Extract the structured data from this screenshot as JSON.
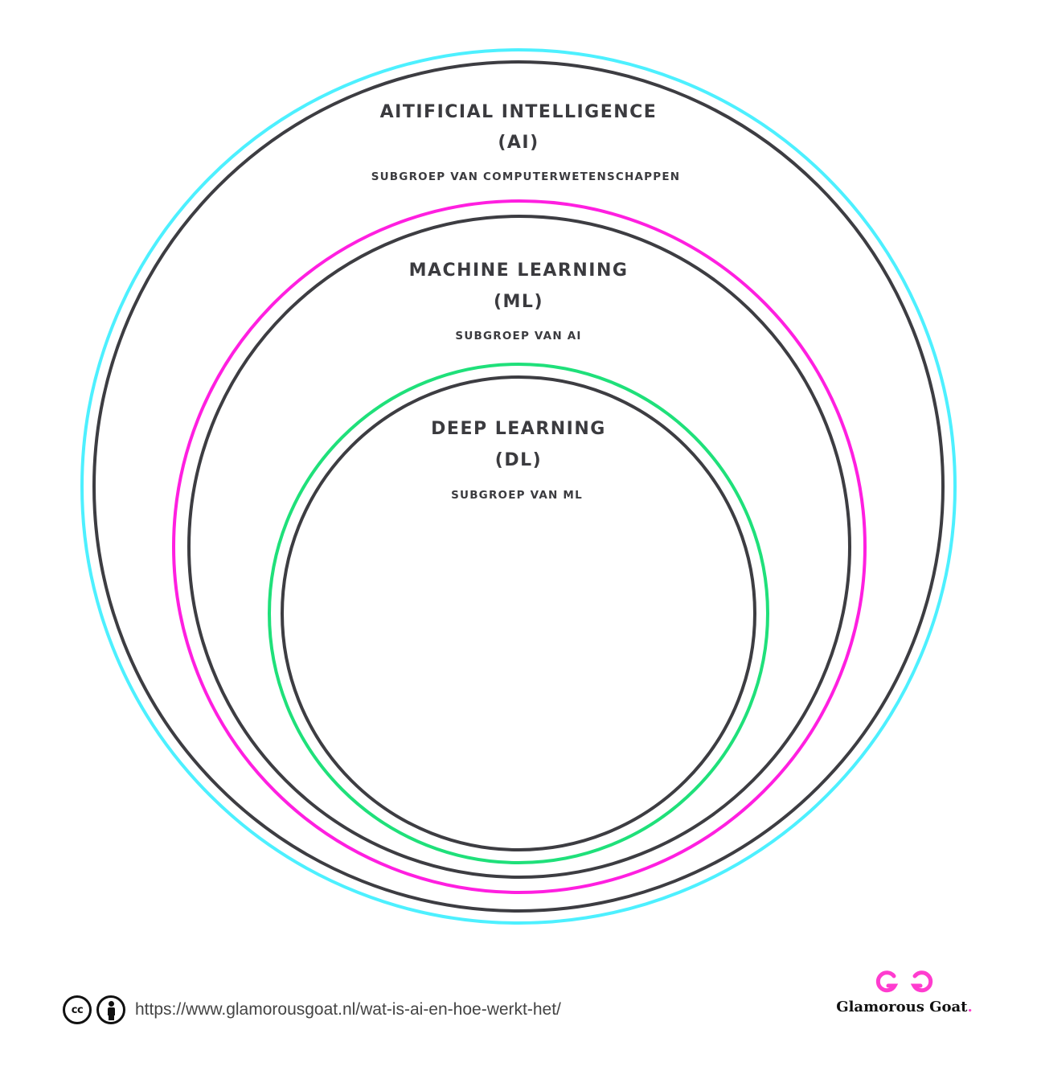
{
  "diagram": {
    "type": "nested-circles",
    "colors": {
      "ai_ring": "#4df0ff",
      "ml_ring": "#ff1fe0",
      "dl_ring": "#1fe07a",
      "inner_stroke": "#3d3d42",
      "text": "#3b3b3f"
    },
    "ai": {
      "title": "AITIFICIAL INTELLIGENCE",
      "abbr": "(AI)",
      "subtitle": "SUBGROEP VAN COMPUTERWETENSCHAPPEN"
    },
    "ml": {
      "title": "MACHINE LEARNING",
      "abbr": "(ML)",
      "subtitle": "SUBGROEP VAN AI"
    },
    "dl": {
      "title": "DEEP LEARNING",
      "abbr": "(DL)",
      "subtitle": "SUBGROEP VAN ML"
    }
  },
  "footer": {
    "license_icons": [
      "creative-commons-icon",
      "attribution-icon"
    ],
    "cc_glyph": "cc",
    "url": "https://www.glamorousgoat.nl/wat-is-ai-en-hoe-werkt-het/",
    "brand": {
      "name": "Glamorous Goat",
      "dot": ".",
      "accent": "#ff3ccf"
    }
  }
}
